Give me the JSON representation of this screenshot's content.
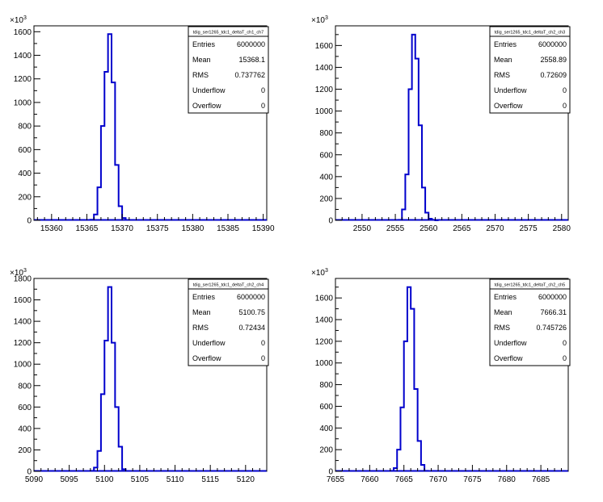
{
  "chart_data": [
    {
      "type": "histogram",
      "title": "tdig_ser1265_tdc1_deltaT_ch1_ch7",
      "xlim": [
        15357.5,
        15390.5
      ],
      "ylim": [
        0,
        1650
      ],
      "y_exponent_label": "×10",
      "y_exponent": "3",
      "x_ticks": [
        15360,
        15365,
        15370,
        15375,
        15380,
        15385,
        15390
      ],
      "y_ticks": [
        0,
        200,
        400,
        600,
        800,
        1000,
        1200,
        1400,
        1600
      ],
      "bin_edges": [
        15365.5,
        15366,
        15366.5,
        15367,
        15367.5,
        15368,
        15368.5,
        15369,
        15369.5,
        15370,
        15370.5
      ],
      "values": [
        5,
        50,
        280,
        800,
        1260,
        1580,
        1170,
        470,
        120,
        20
      ],
      "stats": [
        {
          "label": "Entries",
          "value": "6000000"
        },
        {
          "label": "Mean",
          "value": "15368.1"
        },
        {
          "label": "RMS",
          "value": "0.737762"
        },
        {
          "label": "Underflow",
          "value": "0"
        },
        {
          "label": "Overflow",
          "value": "0"
        }
      ]
    },
    {
      "type": "histogram",
      "title": "tdig_ser1265_tdc1_deltaT_ch2_ch3",
      "xlim": [
        2546,
        2581
      ],
      "ylim": [
        0,
        1780
      ],
      "y_exponent_label": "×10",
      "y_exponent": "3",
      "x_ticks": [
        2550,
        2555,
        2560,
        2565,
        2570,
        2575,
        2580
      ],
      "y_ticks": [
        0,
        200,
        400,
        600,
        800,
        1000,
        1200,
        1400,
        1600
      ],
      "bin_edges": [
        2555.5,
        2556,
        2556.5,
        2557,
        2557.5,
        2558,
        2558.5,
        2559,
        2559.5,
        2560,
        2560.5,
        2561,
        2561.5
      ],
      "values": [
        5,
        100,
        420,
        1200,
        1700,
        1480,
        870,
        300,
        70,
        15,
        5,
        0
      ],
      "stats": [
        {
          "label": "Entries",
          "value": "6000000"
        },
        {
          "label": "Mean",
          "value": "2558.89"
        },
        {
          "label": "RMS",
          "value": "0.72609"
        },
        {
          "label": "Underflow",
          "value": "0"
        },
        {
          "label": "Overflow",
          "value": "0"
        }
      ]
    },
    {
      "type": "histogram",
      "title": "tdig_ser1265_tdc1_deltaT_ch2_ch4",
      "xlim": [
        5090,
        5123
      ],
      "ylim": [
        0,
        1800
      ],
      "y_exponent_label": "×10",
      "y_exponent": "3",
      "x_ticks": [
        5090,
        5095,
        5100,
        5105,
        5110,
        5115,
        5120
      ],
      "y_ticks": [
        0,
        200,
        400,
        600,
        800,
        1000,
        1200,
        1400,
        1600,
        1800
      ],
      "bin_edges": [
        5098,
        5098.5,
        5099,
        5099.5,
        5100,
        5100.5,
        5101,
        5101.5,
        5102,
        5102.5,
        5103
      ],
      "values": [
        5,
        35,
        190,
        720,
        1220,
        1720,
        1200,
        600,
        230,
        20
      ],
      "stats": [
        {
          "label": "Entries",
          "value": "6000000"
        },
        {
          "label": "Mean",
          "value": "5100.75"
        },
        {
          "label": "RMS",
          "value": "0.72434"
        },
        {
          "label": "Underflow",
          "value": "0"
        },
        {
          "label": "Overflow",
          "value": "0"
        }
      ]
    },
    {
      "type": "histogram",
      "title": "tdig_ser1265_tdc1_deltaT_ch2_ch5",
      "xlim": [
        7655,
        7689
      ],
      "ylim": [
        0,
        1780
      ],
      "y_exponent_label": "×10",
      "y_exponent": "3",
      "x_ticks": [
        7655,
        7660,
        7665,
        7670,
        7675,
        7680,
        7685
      ],
      "y_ticks": [
        0,
        200,
        400,
        600,
        800,
        1000,
        1200,
        1400,
        1600
      ],
      "bin_edges": [
        7663,
        7663.5,
        7664,
        7664.5,
        7665,
        7665.5,
        7666,
        7666.5,
        7667,
        7667.5,
        7668,
        7668.5
      ],
      "values": [
        5,
        30,
        200,
        590,
        1200,
        1700,
        1500,
        760,
        280,
        60,
        5
      ],
      "stats": [
        {
          "label": "Entries",
          "value": "6000000"
        },
        {
          "label": "Mean",
          "value": "7666.31"
        },
        {
          "label": "RMS",
          "value": "0.745726"
        },
        {
          "label": "Underflow",
          "value": "0"
        },
        {
          "label": "Overflow",
          "value": "0"
        }
      ]
    }
  ]
}
